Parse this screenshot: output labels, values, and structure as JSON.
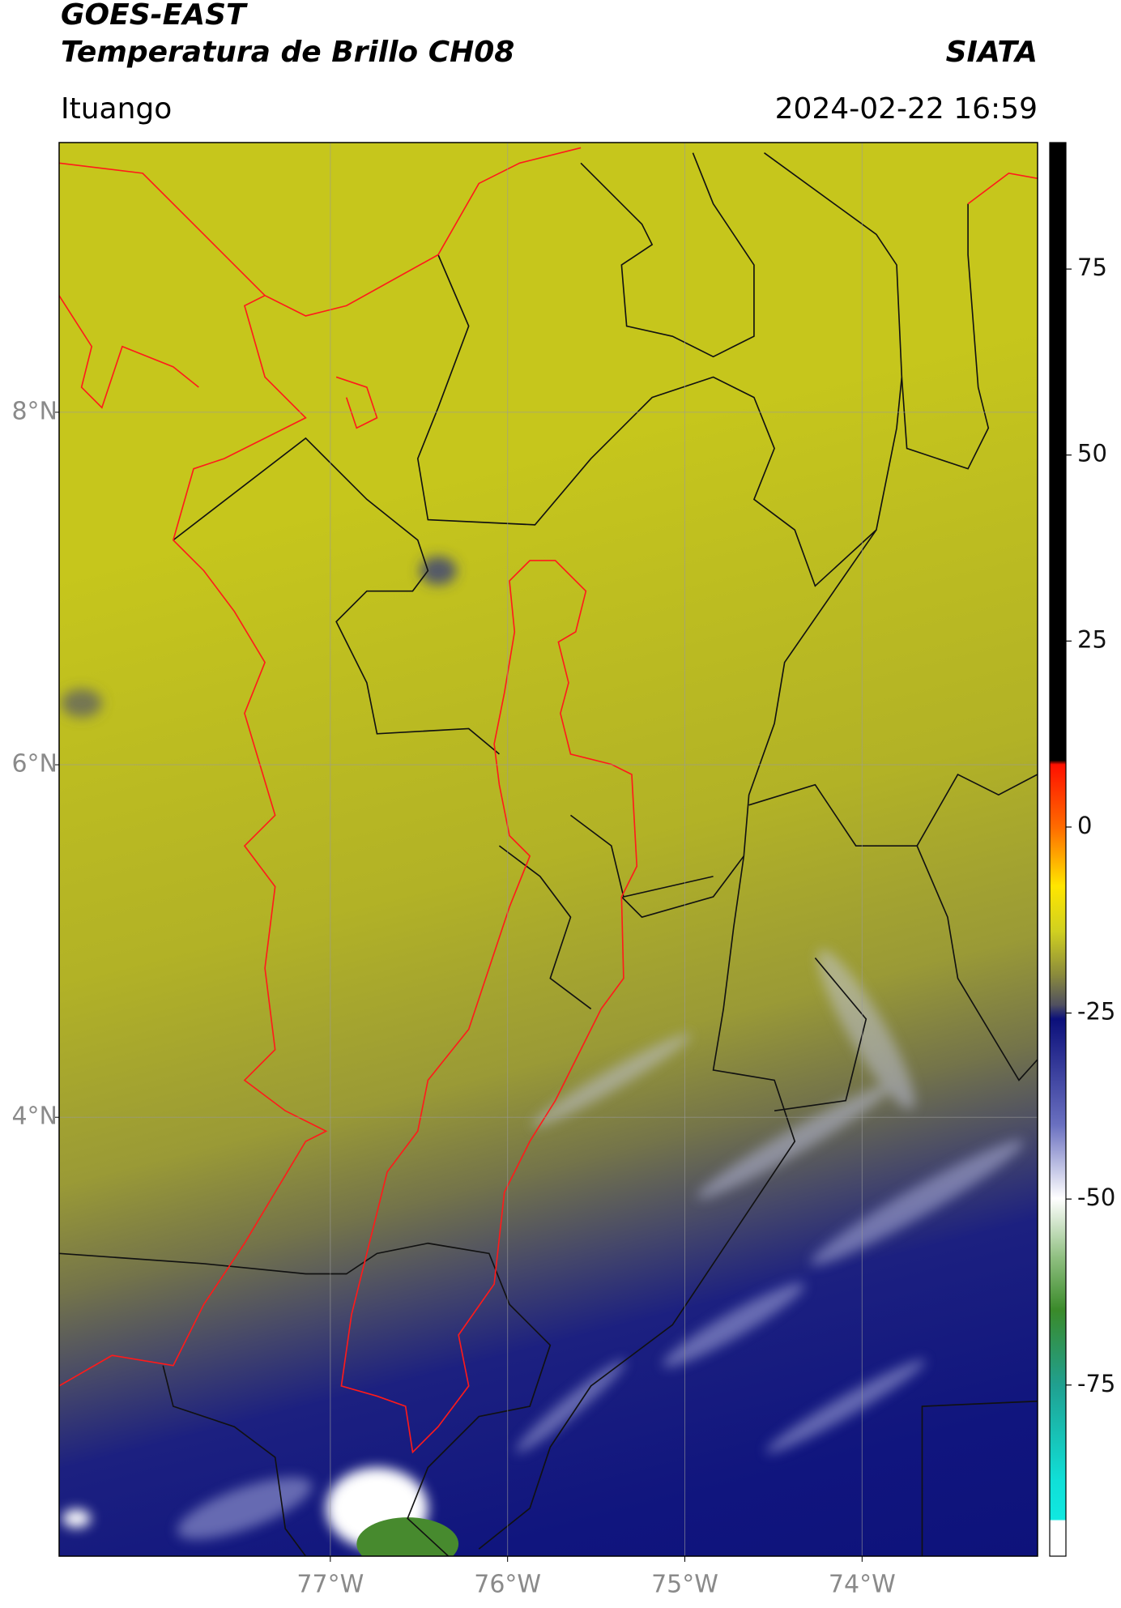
{
  "header": {
    "title": "GOES-EAST",
    "subtitle": "Temperatura de Brillo CH08",
    "agency": "SIATA",
    "location": "Ituango",
    "datetime": "2024-02-22 16:59"
  },
  "map": {
    "xlim": [
      -78.53,
      -73.01
    ],
    "ylim": [
      1.51,
      9.53
    ],
    "xticks": [
      {
        "value": -77,
        "label": "77°W"
      },
      {
        "value": -76,
        "label": "76°W"
      },
      {
        "value": -75,
        "label": "75°W"
      },
      {
        "value": -74,
        "label": "74°W"
      }
    ],
    "yticks": [
      {
        "value": 4,
        "label": "4°N"
      },
      {
        "value": 6,
        "label": "6°N"
      },
      {
        "value": 8,
        "label": "8°N"
      }
    ],
    "grid": true
  },
  "colorbar": {
    "lim": [
      -98,
      92
    ],
    "ticks": [
      -75,
      -50,
      -25,
      0,
      25,
      50,
      75
    ]
  }
}
